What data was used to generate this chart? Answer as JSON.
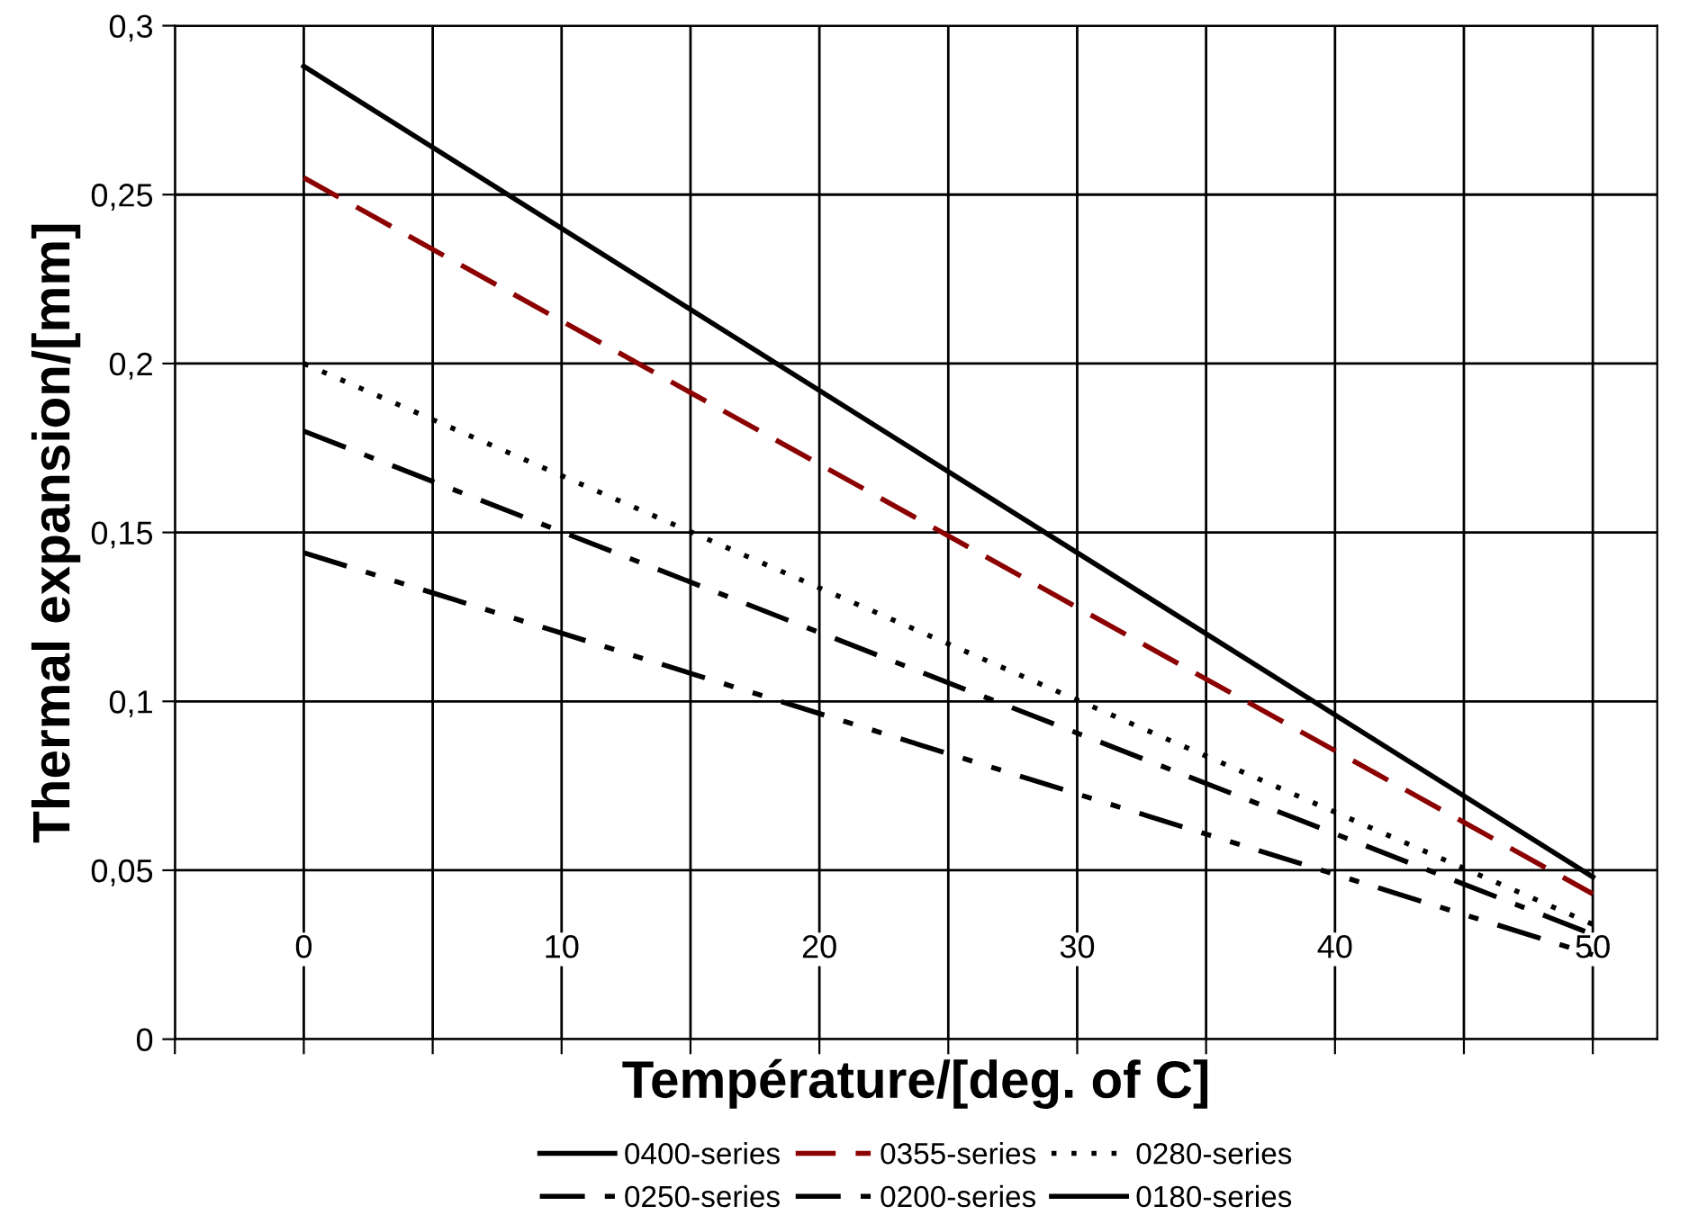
{
  "chart_data": {
    "type": "line",
    "xlabel": "Température/[deg. of C]",
    "ylabel": "Thermal expansion/[mm]",
    "x": [
      0,
      50
    ],
    "series": [
      {
        "name": "0400-series",
        "color": "#000000",
        "line_style": "solid",
        "values": [
          0.288,
          0.048
        ]
      },
      {
        "name": "0355-series",
        "color": "#8b0000",
        "line_style": "dashed",
        "values": [
          0.255,
          0.043
        ]
      },
      {
        "name": "0280-series",
        "color": "#000000",
        "line_style": "dotted",
        "values": [
          0.2,
          0.034
        ]
      },
      {
        "name": "0250-series",
        "color": "#000000",
        "line_style": "dashdot",
        "values": [
          0.18,
          0.031
        ]
      },
      {
        "name": "0200-series",
        "color": "#000000",
        "line_style": "dashdotdot",
        "values": [
          0.144,
          0.025
        ]
      },
      {
        "name": "0180-series",
        "color": "#000000",
        "line_style": "solid",
        "values": [
          null,
          null
        ]
      }
    ],
    "xlim": [
      -5,
      52.5
    ],
    "xticks": [
      {
        "value": -5,
        "label": null
      },
      0,
      {
        "value": 5,
        "label": null
      },
      10,
      {
        "value": 15,
        "label": null
      },
      20,
      {
        "value": 25,
        "label": null
      },
      30,
      {
        "value": 35,
        "label": null
      },
      40,
      {
        "value": 45,
        "label": null
      },
      50
    ],
    "ylim": [
      0,
      0.3
    ],
    "yticks": [
      {
        "value": 0,
        "label": "0"
      },
      {
        "value": 0.05,
        "label": "0,05"
      },
      {
        "value": 0.1,
        "label": "0,1"
      },
      {
        "value": 0.15,
        "label": "0,15"
      },
      {
        "value": 0.2,
        "label": "0,2"
      },
      {
        "value": 0.25,
        "label": "0,25"
      },
      {
        "value": 0.3,
        "label": "0,3"
      }
    ],
    "grid": true,
    "legend": "bottom",
    "marker": "none"
  }
}
